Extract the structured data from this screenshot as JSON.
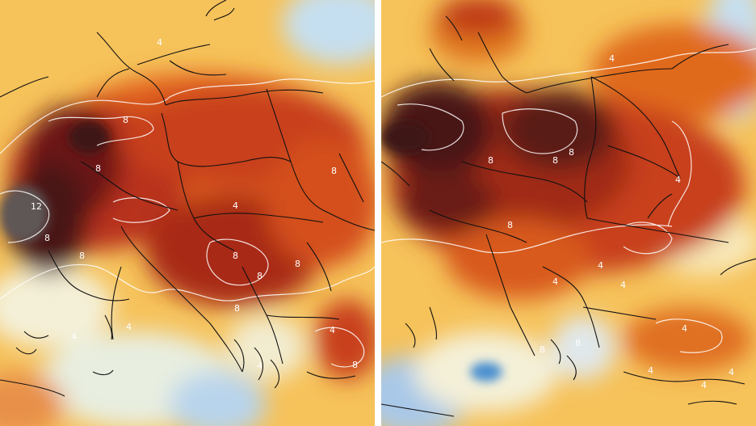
{
  "panels": [
    {
      "id": "left",
      "contour_labels": [
        "12",
        "8",
        "8",
        "8",
        "8",
        "8",
        "8",
        "8",
        "8",
        "8",
        "8",
        "4",
        "4",
        "4",
        "4",
        "4",
        "4"
      ]
    },
    {
      "id": "right",
      "contour_labels": [
        "8",
        "8",
        "8",
        "8",
        "8",
        "8",
        "4",
        "4",
        "4",
        "4",
        "4",
        "4",
        "4",
        "4",
        "4"
      ]
    }
  ],
  "colors": {
    "cold": "#4a8fd0",
    "cool": "#c6dff0",
    "neutral": "#f4f0d8",
    "warm": "#f6d06a",
    "hot": "#f08a20",
    "very_hot": "#d44a1a",
    "extreme": "#8a1a12",
    "max": "#3c1814",
    "peak": "#5a5a5a",
    "borders": "#111111",
    "contours": "#ffffff"
  }
}
